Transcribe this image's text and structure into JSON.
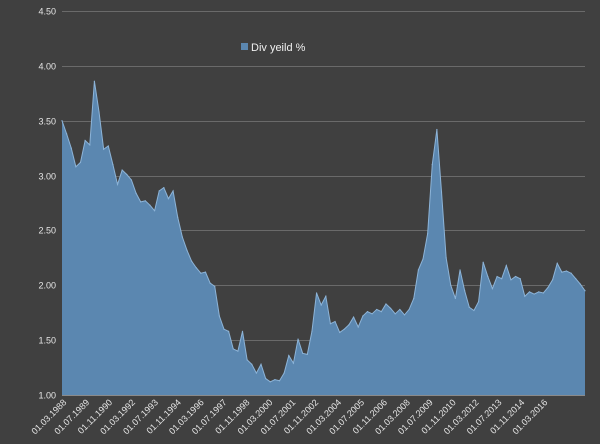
{
  "chart_data": {
    "type": "area",
    "title": "",
    "xlabel": "",
    "ylabel": "",
    "ylim": [
      1.0,
      4.5
    ],
    "y_ticks": [
      "1.00",
      "1.50",
      "2.00",
      "2.50",
      "3.00",
      "3.50",
      "4.00",
      "4.50"
    ],
    "x_tick_labels": [
      "01.03.1988",
      "01.07.1989",
      "01.11.1990",
      "01.03.1992",
      "01.07.1993",
      "01.11.1994",
      "01.03.1996",
      "01.07.1997",
      "01.11.1998",
      "01.03.2000",
      "01.07.2001",
      "01.11.2002",
      "01.03.2004",
      "01.07.2005",
      "01.11.2006",
      "01.03.2008",
      "01.07.2009",
      "01.11.2010",
      "01.03.2012",
      "01.07.2013",
      "01.11.2014",
      "01.03.2016"
    ],
    "grid": true,
    "legend_position": "top-center",
    "colors": {
      "background": "#404040",
      "fill": "#5b87b0",
      "stroke": "#8db4d8",
      "grid": "#6a6a6a"
    },
    "series": [
      {
        "name": "Div yeild %",
        "values": [
          3.5,
          3.38,
          3.25,
          3.08,
          3.12,
          3.32,
          3.28,
          3.86,
          3.58,
          3.24,
          3.27,
          3.1,
          2.92,
          3.05,
          3.01,
          2.96,
          2.84,
          2.76,
          2.77,
          2.73,
          2.68,
          2.86,
          2.89,
          2.79,
          2.86,
          2.62,
          2.44,
          2.32,
          2.22,
          2.16,
          2.11,
          2.12,
          2.02,
          1.99,
          1.72,
          1.6,
          1.58,
          1.42,
          1.4,
          1.58,
          1.32,
          1.28,
          1.2,
          1.28,
          1.15,
          1.12,
          1.14,
          1.13,
          1.2,
          1.36,
          1.29,
          1.51,
          1.38,
          1.37,
          1.58,
          1.93,
          1.82,
          1.9,
          1.65,
          1.67,
          1.57,
          1.6,
          1.64,
          1.71,
          1.62,
          1.72,
          1.76,
          1.74,
          1.78,
          1.76,
          1.83,
          1.79,
          1.74,
          1.78,
          1.73,
          1.78,
          1.88,
          2.14,
          2.24,
          2.47,
          3.1,
          3.42,
          2.85,
          2.25,
          2.0,
          1.88,
          2.14,
          1.95,
          1.8,
          1.77,
          1.85,
          2.21,
          2.08,
          1.97,
          2.08,
          2.06,
          2.18,
          2.05,
          2.08,
          2.06,
          1.9,
          1.94,
          1.92,
          1.94,
          1.93,
          1.98,
          2.05,
          2.2,
          2.12,
          2.13,
          2.11,
          2.06,
          2.01,
          1.95
        ]
      }
    ]
  }
}
